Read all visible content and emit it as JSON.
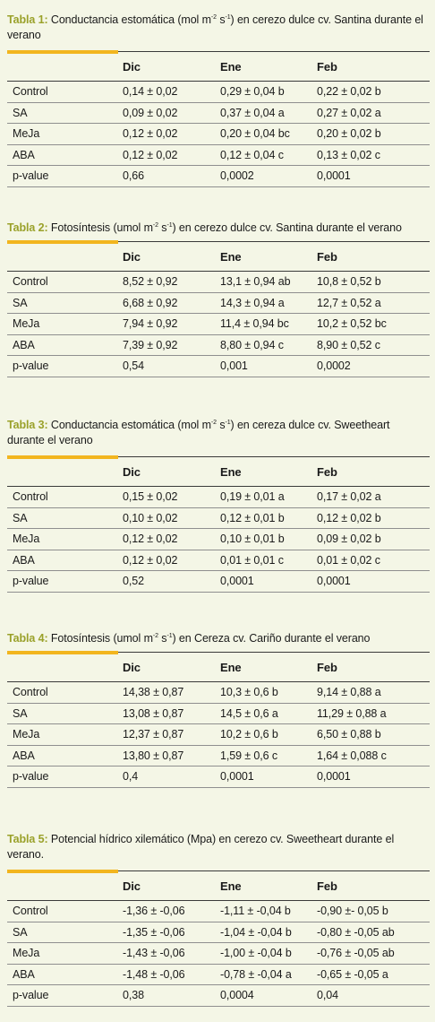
{
  "tables": [
    {
      "label": "Tabla 1:",
      "caption_parts": [
        " Conductancia estomática (mol m",
        "-2",
        " s",
        "-1",
        ") en cerezo dulce cv. Santina durante el verano"
      ],
      "headers": [
        "",
        "Dic",
        "Ene",
        "Feb"
      ],
      "rows": [
        [
          "Control",
          "0,14 ± 0,02",
          "0,29 ± 0,04 b",
          "0,22 ± 0,02 b"
        ],
        [
          "SA",
          "0,09 ± 0,02",
          "0,37 ± 0,04 a",
          "0,27 ± 0,02 a"
        ],
        [
          "MeJa",
          "0,12 ± 0,02",
          "0,20 ± 0,04 bc",
          "0,20 ± 0,02 b"
        ],
        [
          "ABA",
          "0,12 ± 0,02",
          "0,12 ± 0,04 c",
          "0,13 ± 0,02 c"
        ],
        [
          "p-value",
          "0,66",
          "0,0002",
          "0,0001"
        ]
      ]
    },
    {
      "label": "Tabla 2:",
      "caption_parts": [
        " Fotosíntesis (umol m",
        "-2",
        " s",
        "-1",
        ") en cerezo dulce cv. Santina durante el verano"
      ],
      "headers": [
        "",
        "Dic",
        "Ene",
        "Feb"
      ],
      "rows": [
        [
          "Control",
          "8,52 ± 0,92",
          "13,1 ± 0,94 ab",
          "10,8 ± 0,52 b"
        ],
        [
          "SA",
          "6,68 ± 0,92",
          "14,3 ± 0,94 a",
          "12,7 ± 0,52 a"
        ],
        [
          "MeJa",
          "7,94 ± 0,92",
          "11,4 ± 0,94 bc",
          "10,2 ± 0,52 bc"
        ],
        [
          "ABA",
          "7,39 ± 0,92",
          "8,80 ± 0,94 c",
          "8,90 ± 0,52 c"
        ],
        [
          "p-value",
          "0,54",
          "0,001",
          "0,0002"
        ]
      ]
    },
    {
      "label": "Tabla 3:",
      "caption_parts": [
        " Conductancia estomática (mol m",
        "-2",
        " s",
        "-1",
        ") en cereza dulce cv. Sweetheart durante el verano"
      ],
      "headers": [
        "",
        "Dic",
        "Ene",
        "Feb"
      ],
      "rows": [
        [
          "Control",
          "0,15 ± 0,02",
          "0,19 ± 0,01  a",
          "0,17 ± 0,02 a"
        ],
        [
          "SA",
          "0,10 ± 0,02",
          "0,12 ± 0,01 b",
          "0,12 ± 0,02 b"
        ],
        [
          "MeJa",
          "0,12 ± 0,02",
          "0,10 ± 0,01 b",
          "0,09 ± 0,02 b"
        ],
        [
          "ABA",
          "0,12 ± 0,02",
          "0,01 ± 0,01 c",
          "0,01 ± 0,02 c"
        ],
        [
          "p-value",
          "0,52",
          "0,0001",
          "0,0001"
        ]
      ]
    },
    {
      "label": "Tabla 4:",
      "caption_parts": [
        " Fotosíntesis (umol m",
        "-2",
        " s",
        "-1",
        ") en Cereza cv. Cariño durante el verano"
      ],
      "headers": [
        "",
        "Dic",
        "Ene",
        "Feb"
      ],
      "rows": [
        [
          "Control",
          "14,38 ± 0,87",
          "10,3 ± 0,6 b",
          "9,14 ± 0,88 a"
        ],
        [
          "SA",
          "13,08 ± 0,87",
          "14,5 ± 0,6 a",
          "11,29 ± 0,88 a"
        ],
        [
          "MeJa",
          "12,37 ± 0,87",
          "10,2 ± 0,6 b",
          "6,50 ± 0,88 b"
        ],
        [
          "ABA",
          "13,80 ± 0,87",
          "1,59 ± 0,6 c",
          "1,64 ± 0,088 c"
        ],
        [
          "p-value",
          "0,4",
          "0,0001",
          "0,0001"
        ]
      ]
    },
    {
      "label": "Tabla 5:",
      "caption_parts": [
        " Potencial hídrico xilemático (Mpa) en cerezo cv. Sweetheart durante el verano."
      ],
      "headers": [
        "",
        "Dic",
        "Ene",
        "Feb"
      ],
      "rows": [
        [
          "Control",
          "-1,36 ± -0,06",
          "-1,11 ± -0,04 b",
          "-0,90 ±- 0,05 b"
        ],
        [
          "SA",
          "-1,35 ± -0,06",
          "-1,04 ± -0,04 b",
          "-0,80 ± -0,05 ab"
        ],
        [
          "MeJa",
          "-1,43 ± -0,06",
          "-1,00 ± -0,04 b",
          "-0,76 ± -0,05 ab"
        ],
        [
          "ABA",
          "-1,48 ± -0,06",
          "-0,78 ± -0,04 a",
          "-0,65 ± -0,05 a"
        ],
        [
          "p-value",
          "0,38",
          "0,0004",
          "0,04"
        ]
      ]
    }
  ]
}
